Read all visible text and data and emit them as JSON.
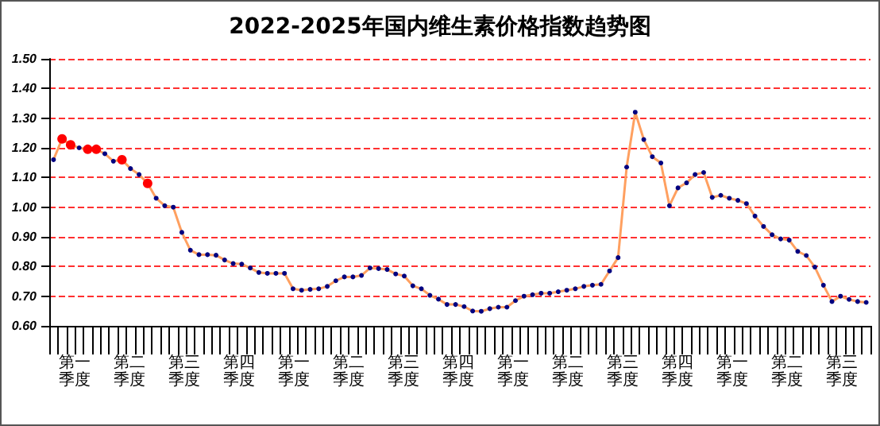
{
  "chart_data": {
    "type": "line",
    "title": "2022-2025年国内维生素价格指数趋势图",
    "categories": [
      null,
      null,
      null,
      null,
      null,
      null,
      null,
      null,
      null,
      null,
      null,
      null,
      null,
      null,
      null,
      null,
      null,
      null,
      null,
      null,
      null,
      null,
      null,
      null,
      null,
      null,
      null,
      null,
      null,
      null,
      null,
      null,
      null,
      null,
      null,
      null,
      null,
      null,
      null,
      null,
      null,
      null,
      null,
      null,
      null,
      null,
      null,
      null,
      null,
      null,
      null,
      null,
      null,
      null,
      null,
      null,
      null,
      null,
      null,
      null,
      null,
      null,
      null,
      null,
      null,
      null,
      null,
      null,
      null,
      null,
      null,
      null,
      null,
      null,
      null,
      null,
      null,
      null,
      null,
      null,
      null,
      null,
      null,
      null,
      null,
      null,
      null,
      null,
      null,
      null,
      null,
      null,
      null,
      null,
      null,
      null
    ],
    "series": [
      {
        "color": "#ffa060",
        "values": [
          1.16,
          1.23,
          1.21,
          1.2,
          1.195,
          1.195,
          1.18,
          1.155,
          1.16,
          1.13,
          1.11,
          1.08,
          1.03,
          1.005,
          1.0,
          0.915,
          0.855,
          0.84,
          0.84,
          0.838,
          0.822,
          0.81,
          0.808,
          0.795,
          0.78,
          0.777,
          0.777,
          0.777,
          0.725,
          0.72,
          0.723,
          0.725,
          0.733,
          0.752,
          0.765,
          0.765,
          0.77,
          0.795,
          0.793,
          0.79,
          0.775,
          0.768,
          0.735,
          0.725,
          0.703,
          0.69,
          0.672,
          0.672,
          0.665,
          0.65,
          0.649,
          0.658,
          0.663,
          0.663,
          0.685,
          0.7,
          0.705,
          0.71,
          0.71,
          0.715,
          0.72,
          0.725,
          0.733,
          0.737,
          0.74,
          0.785,
          0.83,
          1.135,
          1.32,
          1.228,
          1.17,
          1.149,
          1.005,
          1.065,
          1.082,
          1.11,
          1.117,
          1.033,
          1.04,
          1.03,
          1.023,
          1.012,
          0.97,
          0.935,
          0.907,
          0.893,
          0.889,
          0.851,
          0.837,
          0.798,
          0.737,
          0.682,
          0.7,
          0.689,
          0.682,
          0.679
        ],
        "colors": [
          "#000080",
          "#ff0000",
          "#ff0000",
          "#000080",
          "#ff0000",
          "#ff0000",
          "#000080",
          "#000080",
          "#ff0000",
          "#000080",
          "#000080",
          "#ff0000",
          "#000080",
          "#000080",
          "#000080",
          "#000080",
          "#000080",
          "#000080",
          "#000080",
          "#000080",
          "#000080",
          "#000080",
          "#000080",
          "#000080",
          "#000080",
          "#000080",
          "#000080",
          "#000080",
          "#000080",
          "#000080",
          "#000080",
          "#000080",
          "#000080",
          "#000080",
          "#000080",
          "#000080",
          "#000080",
          "#000080",
          "#000080",
          "#000080",
          "#000080",
          "#000080",
          "#000080",
          "#000080",
          "#000080",
          "#000080",
          "#000080",
          "#000080",
          "#000080",
          "#000080",
          "#000080",
          "#000080",
          "#000080",
          "#000080",
          "#000080",
          "#000080",
          "#000080",
          "#000080",
          "#000080",
          "#000080",
          "#000080",
          "#000080",
          "#000080",
          "#000080",
          "#000080",
          "#000080",
          "#000080",
          "#000080",
          "#000080",
          "#000080",
          "#000080",
          "#000080",
          "#000080",
          "#000080",
          "#000080",
          "#000080",
          "#000080",
          "#000080",
          "#000080",
          "#000080",
          "#000080",
          "#000080",
          "#000080",
          "#000080",
          "#000080",
          "#000080",
          "#000080",
          "#000080",
          "#000080",
          "#000080",
          "#000080",
          "#000080",
          "#000080",
          "#000080",
          "#000080",
          "#000080"
        ]
      }
    ],
    "ylim": [
      0.6,
      1.5
    ],
    "yticks": [
      {
        "value": 0.6,
        "label": "0.60"
      },
      {
        "value": 0.7,
        "label": "0.70"
      },
      {
        "value": 0.8,
        "label": "0.80"
      },
      {
        "value": 0.9,
        "label": "0.90"
      },
      {
        "value": 1.0,
        "label": "1.00"
      },
      {
        "value": 1.1,
        "label": "1.10"
      },
      {
        "value": 1.2,
        "label": "1.20"
      },
      {
        "value": 1.3,
        "label": "1.30"
      },
      {
        "value": 1.4,
        "label": "1.40"
      },
      {
        "value": 1.5,
        "label": "1.50"
      }
    ],
    "grid": "y",
    "marker": "circle",
    "line_style": "solid",
    "annotations": [
      "第一季度",
      "第二季度",
      "第三季度",
      "第四季度",
      "第一季度",
      "第二季度",
      "第三季度",
      "第四季度",
      "第一季度",
      "第二季度",
      "第三季度",
      "第四季度",
      "第一季度",
      "第二季度",
      "第三季度"
    ]
  }
}
